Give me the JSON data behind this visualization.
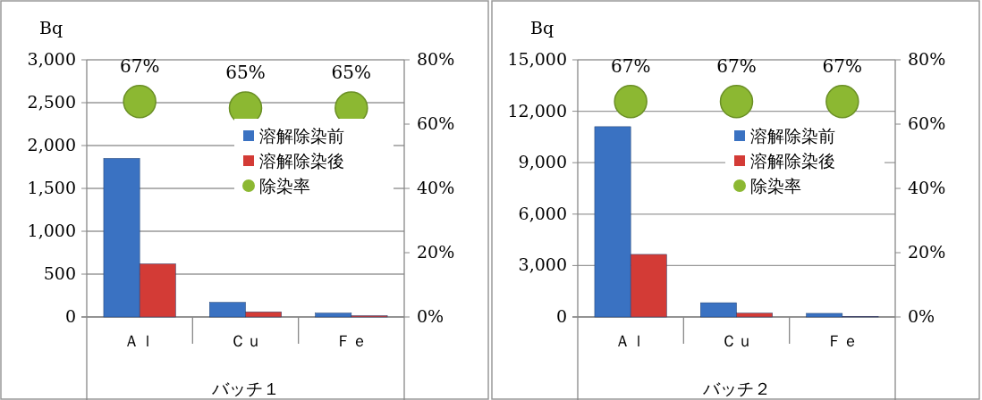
{
  "chart_data": [
    {
      "type": "bar",
      "categories": [
        "Ａｌ",
        "Ｃｕ",
        "Ｆｅ"
      ],
      "xlabel": "バッチ１",
      "ylabel": "Bq",
      "ylim": [
        0,
        3000
      ],
      "yticks": [
        {
          "value": 0,
          "label": "0"
        },
        {
          "value": 500,
          "label": "500"
        },
        {
          "value": 1000,
          "label": "1,000"
        },
        {
          "value": 1500,
          "label": "1,500"
        },
        {
          "value": 2000,
          "label": "2,000"
        },
        {
          "value": 2500,
          "label": "2,500"
        },
        {
          "value": 3000,
          "label": "3,000"
        }
      ],
      "y2lim": [
        0,
        80
      ],
      "y2ticks": [
        {
          "value": 0,
          "label": "0%"
        },
        {
          "value": 20,
          "label": "20%"
        },
        {
          "value": 40,
          "label": "40%"
        },
        {
          "value": 60,
          "label": "60%"
        },
        {
          "value": 80,
          "label": "80%"
        }
      ],
      "grid": "y",
      "legend": "right",
      "series": [
        {
          "name": "溶解除染前",
          "color": "#3a72c2",
          "values": [
            1850,
            170,
            45
          ]
        },
        {
          "name": "溶解除染後",
          "color": "#d33b36",
          "values": [
            620,
            60,
            15
          ]
        },
        {
          "name": "除染率",
          "type": "scatter",
          "axis": "y2",
          "marker": "circle",
          "color": "#8cb832",
          "values": [
            67,
            65,
            65
          ],
          "value_labels": [
            "67%",
            "65%",
            "65%"
          ]
        }
      ]
    },
    {
      "type": "bar",
      "categories": [
        "Ａｌ",
        "Ｃｕ",
        "Ｆｅ"
      ],
      "xlabel": "バッチ２",
      "ylabel": "Bq",
      "ylim": [
        0,
        15000
      ],
      "yticks": [
        {
          "value": 0,
          "label": "0"
        },
        {
          "value": 3000,
          "label": "3,000"
        },
        {
          "value": 6000,
          "label": "6,000"
        },
        {
          "value": 9000,
          "label": "9,000"
        },
        {
          "value": 12000,
          "label": "12,000"
        },
        {
          "value": 15000,
          "label": "15,000"
        }
      ],
      "y2lim": [
        0,
        80
      ],
      "y2ticks": [
        {
          "value": 0,
          "label": "0%"
        },
        {
          "value": 20,
          "label": "20%"
        },
        {
          "value": 40,
          "label": "40%"
        },
        {
          "value": 60,
          "label": "60%"
        },
        {
          "value": 80,
          "label": "80%"
        }
      ],
      "grid": "y",
      "legend": "right",
      "series": [
        {
          "name": "溶解除染前",
          "color": "#3a72c2",
          "values": [
            11100,
            830,
            210
          ]
        },
        {
          "name": "溶解除染後",
          "color": "#d33b36",
          "values": [
            3650,
            225,
            30
          ]
        },
        {
          "name": "除染率",
          "type": "scatter",
          "axis": "y2",
          "marker": "circle",
          "color": "#8cb832",
          "values": [
            67,
            67,
            67
          ],
          "value_labels": [
            "67%",
            "67%",
            "67%"
          ]
        }
      ]
    }
  ]
}
